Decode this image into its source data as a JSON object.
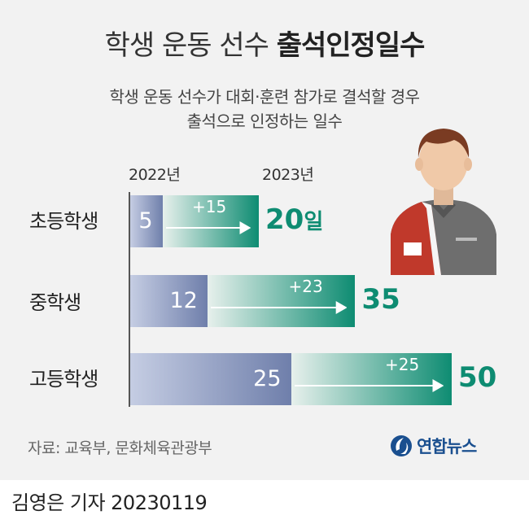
{
  "title": {
    "light": "학생 운동 선수",
    "bold": "출석인정일수"
  },
  "subtitle": [
    "학생 운동 선수가 대회·훈련 참가로 결석할 경우",
    "출석으로 인정하는 일수"
  ],
  "chart_data": {
    "type": "bar",
    "categories": [
      "초등학생",
      "중학생",
      "고등학생"
    ],
    "series": [
      {
        "name": "2022년",
        "values": [
          5,
          12,
          25
        ]
      },
      {
        "name": "2023년",
        "values": [
          20,
          35,
          50
        ]
      }
    ],
    "diffs": [
      "+15",
      "+23",
      "+25"
    ],
    "new_labels": [
      "20",
      "35",
      "50"
    ],
    "unit": "일",
    "colors": {
      "old": "#6f7fab",
      "new": "#0e8c72"
    }
  },
  "source": "자료: 교육부, 문화체육관광부",
  "logo": {
    "text": "연합뉴스",
    "color": "#1a4f8f"
  },
  "byline": "김영은 기자  20230119",
  "icons": {
    "person": "athlete-person-icon",
    "logo": "yonhap-logo-icon"
  }
}
